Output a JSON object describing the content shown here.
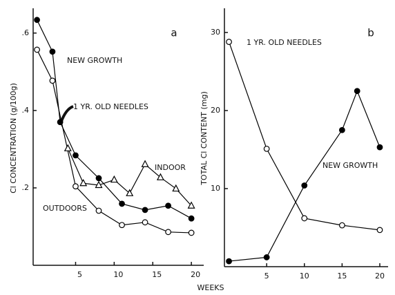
{
  "chart_data": [
    {
      "type": "line",
      "panel_label": "a",
      "ylabel": "Cl CONCENTRATION (g/100g)",
      "xlabel": "WEEKS",
      "xlim": [
        -0.5,
        21.6
      ],
      "ylim": [
        0,
        0.664
      ],
      "xticks": [
        5,
        10,
        15,
        20
      ],
      "yticks": [
        {
          "value": 0.2,
          "label": ".2"
        },
        {
          "value": 0.4,
          "label": ".4"
        },
        {
          "value": 0.6,
          "label": ".6"
        }
      ],
      "annotations": [
        "NEW GROWTH",
        "1 YR. OLD NEEDLES",
        "INDOOR",
        "OUTDOORS"
      ],
      "series": [
        {
          "name": "NEW GROWTH",
          "color": "#000000",
          "marker": "filled",
          "x": [
            0,
            2,
            3,
            5,
            8,
            11,
            14,
            17,
            20
          ],
          "values": [
            0.634,
            0.552,
            0.37,
            0.284,
            0.225,
            0.159,
            0.143,
            0.154,
            0.121
          ]
        },
        {
          "name": "OUTDOORS",
          "color": "#000000",
          "marker": "open",
          "x": [
            0,
            2,
            5,
            8,
            11,
            14,
            17,
            20
          ],
          "values": [
            0.557,
            0.477,
            0.204,
            0.141,
            0.104,
            0.111,
            0.086,
            0.084
          ]
        },
        {
          "name": "INDOOR",
          "color": "#000000",
          "marker": "triangle",
          "x": [
            4,
            6,
            8,
            10,
            12,
            14,
            16,
            18,
            20
          ],
          "values": [
            0.302,
            0.212,
            0.207,
            0.221,
            0.186,
            0.261,
            0.227,
            0.198,
            0.154
          ]
        }
      ]
    },
    {
      "type": "line",
      "panel_label": "b",
      "ylabel": "TOTAL Cl CONTENT (mg)",
      "xlim": [
        -0.6,
        21.1
      ],
      "ylim": [
        0,
        33.1
      ],
      "xticks": [
        5,
        10,
        15,
        20
      ],
      "yticks": [
        10,
        20,
        30
      ],
      "annotations": [
        "1 YR. OLD NEEDLES",
        "NEW GROWTH"
      ],
      "series": [
        {
          "name": "1 YR. OLD NEEDLES",
          "color": "#000000",
          "marker": "open",
          "x": [
            0,
            5,
            10,
            15,
            20
          ],
          "values": [
            28.8,
            15.1,
            6.2,
            5.3,
            4.7
          ]
        },
        {
          "name": "NEW GROWTH",
          "color": "#000000",
          "marker": "filled",
          "x": [
            0,
            5,
            10,
            15,
            17,
            20
          ],
          "values": [
            0.7,
            1.2,
            10.4,
            17.5,
            22.5,
            15.3
          ]
        }
      ]
    }
  ]
}
